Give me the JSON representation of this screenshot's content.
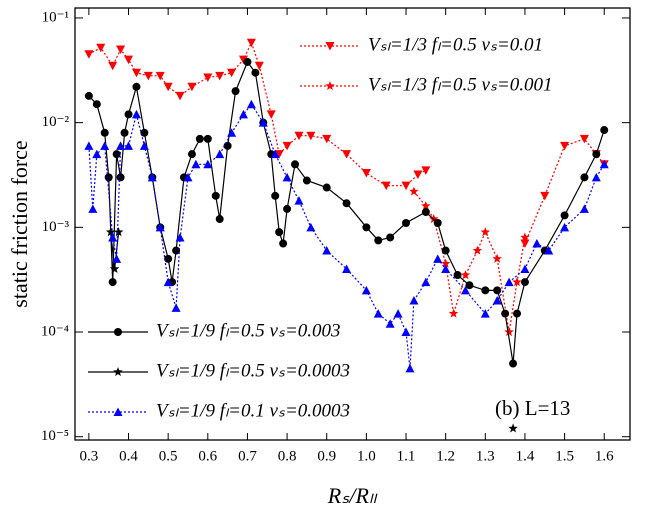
{
  "chart_data": {
    "type": "line",
    "xlabel": "Rₛ/Rₗₗ",
    "ylabel": "static friction force",
    "annotation": "(b) L=13",
    "log_y": true,
    "xlim": [
      0.265,
      1.665
    ],
    "ylim": [
      9.3e-06,
      0.1245
    ],
    "xticks": [
      0.3,
      0.4,
      0.5,
      0.6,
      0.7,
      0.8,
      0.9,
      {
        "value": 1,
        "label": "1.0"
      },
      1.1,
      1.2,
      1.3,
      1.4,
      1.5,
      1.6
    ],
    "yticks": [
      {
        "value": 1e-05,
        "label": "10⁻⁵"
      },
      {
        "value": 0.0001,
        "label": "10⁻⁴"
      },
      {
        "value": 0.001,
        "label": "10⁻³"
      },
      {
        "value": 0.01,
        "label": "10⁻²"
      },
      {
        "value": 0.1,
        "label": "10⁻¹"
      }
    ],
    "series": [
      {
        "name": "Vₛₗ=1/3  fₗ=0.5  vₛ=0.01",
        "color": "#ff0000",
        "marker": "triangle-down",
        "dash": "dotted",
        "x": [
          0.3,
          0.33,
          0.36,
          0.38,
          0.4,
          0.42,
          0.45,
          0.48,
          0.5,
          0.53,
          0.56,
          0.6,
          0.63,
          0.66,
          0.69,
          0.71,
          0.73,
          0.76,
          0.78,
          0.8,
          0.83,
          0.86,
          0.9,
          0.95,
          1.0,
          1.05,
          1.1,
          1.13,
          1.15,
          1.27,
          1.4,
          1.45,
          1.5,
          1.55,
          1.58,
          1.6
        ],
        "values": [
          0.045,
          0.052,
          0.035,
          0.05,
          0.04,
          0.03,
          0.028,
          0.028,
          0.022,
          0.018,
          0.022,
          0.027,
          0.028,
          0.03,
          0.04,
          0.058,
          0.035,
          0.012,
          0.005,
          0.006,
          0.0075,
          0.0075,
          0.007,
          0.005,
          0.0033,
          0.0025,
          0.0025,
          0.0032,
          0.0035,
          null,
          0.0007,
          0.002,
          0.006,
          0.007,
          0.005,
          0.004
        ]
      },
      {
        "name": "Vₛₗ=1/3  fₗ=0.5  vₛ=0.001",
        "color": "#ff0000",
        "marker": "star",
        "dash": "dotted",
        "x": [
          1.12,
          1.15,
          1.17,
          1.2,
          1.22,
          1.25,
          1.28,
          1.3,
          1.33,
          1.36,
          1.38,
          1.4
        ],
        "values": [
          0.0022,
          0.0016,
          0.0012,
          0.00045,
          0.00015,
          0.00035,
          0.0006,
          0.0009,
          0.0005,
          0.0001,
          0.0003,
          0.0008
        ]
      },
      {
        "name": "Vₛₗ=1/9  fₗ=0.5  vₛ=0.003",
        "color": "#000000",
        "marker": "circle",
        "dash": "solid",
        "x": [
          0.3,
          0.32,
          0.34,
          0.35,
          0.36,
          0.37,
          0.38,
          0.39,
          0.4,
          0.42,
          0.44,
          0.46,
          0.48,
          0.5,
          0.51,
          0.52,
          0.54,
          0.56,
          0.58,
          0.6,
          0.62,
          0.63,
          0.65,
          0.67,
          0.7,
          0.72,
          0.74,
          0.76,
          0.77,
          0.78,
          0.79,
          0.8,
          0.82,
          0.85,
          0.9,
          0.95,
          1.0,
          1.03,
          1.06,
          1.1,
          1.15,
          1.18,
          1.2,
          1.23,
          1.26,
          1.3,
          1.33,
          1.35,
          1.37,
          1.38,
          1.4,
          1.45,
          1.5,
          1.55,
          1.58,
          1.6
        ],
        "values": [
          0.018,
          0.015,
          0.008,
          0.003,
          0.0003,
          0.005,
          0.003,
          0.008,
          0.012,
          0.022,
          0.008,
          0.003,
          0.001,
          0.0005,
          0.0003,
          0.0006,
          0.003,
          0.005,
          0.007,
          0.007,
          0.002,
          0.0012,
          0.006,
          0.02,
          0.038,
          0.03,
          0.01,
          0.005,
          0.002,
          0.0009,
          0.0007,
          0.0015,
          0.004,
          0.0028,
          0.0024,
          0.0017,
          0.001,
          0.00075,
          0.0008,
          0.0011,
          0.0014,
          0.0011,
          0.0006,
          0.00035,
          0.00028,
          0.00025,
          0.00025,
          0.00015,
          5e-05,
          0.00015,
          0.0003,
          0.0006,
          0.0013,
          0.003,
          0.005,
          0.0085
        ]
      },
      {
        "name": "Vₛₗ=1/9  fₗ=0.5  vₛ=0.0003",
        "color": "#000000",
        "marker": "star",
        "dash": "solid",
        "x": [
          0.355,
          0.365,
          0.375,
          1.0,
          1.37
        ],
        "values": [
          0.0009,
          0.0004,
          0.0009,
          null,
          1.2e-05
        ]
      },
      {
        "name": "Vₛₗ=1/9  fₗ=0.1  vₛ=0.0003",
        "color": "#0000ff",
        "marker": "triangle-up",
        "dash": "dotted",
        "x": [
          0.3,
          0.31,
          0.32,
          0.34,
          0.36,
          0.37,
          0.38,
          0.4,
          0.42,
          0.44,
          0.46,
          0.48,
          0.5,
          0.52,
          0.53,
          0.55,
          0.57,
          0.6,
          0.63,
          0.66,
          0.69,
          0.71,
          0.74,
          0.77,
          0.8,
          0.83,
          0.86,
          0.9,
          0.95,
          1.0,
          1.03,
          1.06,
          1.08,
          1.1,
          1.11,
          1.12,
          1.15,
          1.18,
          1.2,
          1.25,
          1.3,
          1.33,
          1.36,
          1.4,
          1.43,
          1.46,
          1.5,
          1.55,
          1.58,
          1.6
        ],
        "values": [
          0.006,
          0.0015,
          0.005,
          0.006,
          0.0008,
          0.0005,
          0.006,
          0.006,
          0.012,
          0.006,
          0.003,
          0.001,
          0.0003,
          0.00017,
          0.0008,
          0.003,
          0.004,
          0.004,
          0.005,
          0.008,
          0.012,
          0.015,
          0.01,
          0.005,
          0.003,
          0.0018,
          0.001,
          0.0006,
          0.0004,
          0.00025,
          0.00015,
          0.00012,
          0.00015,
          0.0001,
          4.5e-05,
          0.0002,
          0.0003,
          0.0005,
          0.0004,
          0.00025,
          0.00015,
          0.0002,
          0.0003,
          0.0004,
          0.0007,
          0.0006,
          0.001,
          0.0015,
          0.003,
          0.004
        ]
      }
    ]
  }
}
